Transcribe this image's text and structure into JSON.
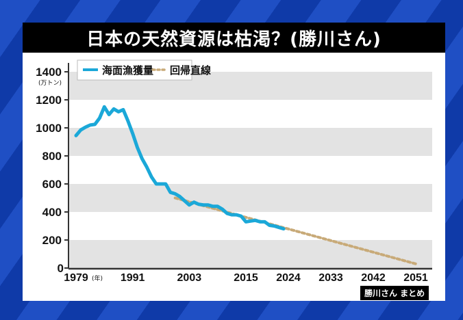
{
  "title": "日本の天然資源は枯渇？(勝川さん)",
  "badge": "勝川さん まとめ",
  "colors": {
    "actual": "#1ba8d8",
    "regression": "#c8aa78",
    "band": "#e3e3e3",
    "title_bg": "#000000"
  },
  "chart_data": {
    "type": "line",
    "title": "日本の天然資源は枯渇？(勝川さん)",
    "xlabel": "(年)",
    "ylabel": "(万トン)",
    "ylim": [
      0,
      1400
    ],
    "yticks": [
      0,
      200,
      400,
      600,
      800,
      1000,
      1200,
      1400
    ],
    "xticks": [
      1979,
      1991,
      2003,
      2015,
      2024,
      2033,
      2042,
      2051
    ],
    "xlim": [
      1979,
      2051
    ],
    "grid": "alternating horizontal bands",
    "legend_position": "top-left",
    "series": [
      {
        "name": "海面漁獲量",
        "style": "solid",
        "x": [
          1979,
          1980,
          1981,
          1982,
          1983,
          1984,
          1985,
          1986,
          1987,
          1988,
          1989,
          1990,
          1991,
          1992,
          1993,
          1994,
          1995,
          1996,
          1997,
          1998,
          1999,
          2000,
          2001,
          2002,
          2003,
          2004,
          2005,
          2006,
          2007,
          2008,
          2009,
          2010,
          2011,
          2012,
          2013,
          2014,
          2015,
          2016,
          2017,
          2018,
          2019,
          2020,
          2021,
          2022,
          2023
        ],
        "values": [
          945,
          985,
          1005,
          1020,
          1025,
          1070,
          1150,
          1095,
          1135,
          1115,
          1130,
          1050,
          960,
          860,
          780,
          720,
          650,
          600,
          600,
          600,
          540,
          530,
          510,
          480,
          450,
          470,
          455,
          450,
          450,
          440,
          440,
          420,
          390,
          380,
          380,
          370,
          330,
          335,
          340,
          330,
          330,
          305,
          300,
          290,
          280
        ]
      },
      {
        "name": "回帰直線",
        "style": "dotted",
        "x": [
          2000,
          2051
        ],
        "values": [
          500,
          30
        ]
      }
    ]
  },
  "axis": {
    "y_labels": [
      "1400",
      "1200",
      "1000",
      "800",
      "600",
      "400",
      "200",
      "0"
    ],
    "y_unit": "(万トン)",
    "x_labels": [
      "1979",
      "1991",
      "2003",
      "2015",
      "2024",
      "2033",
      "2042",
      "2051"
    ],
    "x_unit": "(年)"
  },
  "legend": [
    {
      "label": "海面漁獲量",
      "style": "solid"
    },
    {
      "label": "回帰直線",
      "style": "dotted"
    }
  ]
}
